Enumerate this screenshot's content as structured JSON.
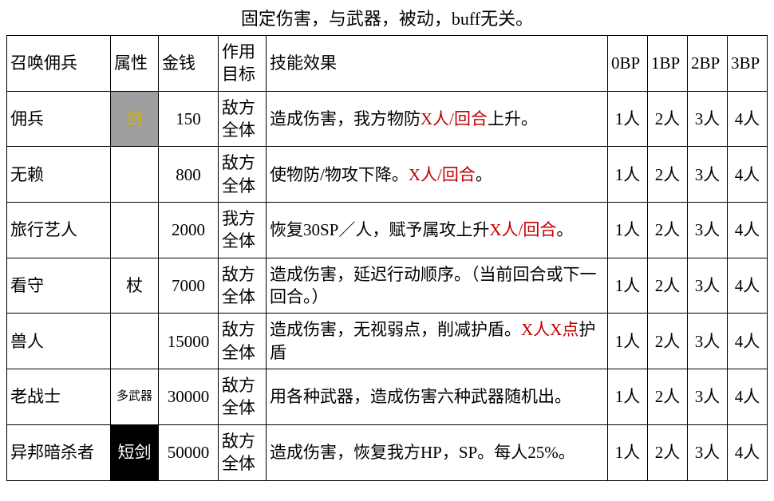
{
  "caption": "固定伤害，与武器，被动，buff无关。",
  "columns": [
    "召唤佣兵",
    "属性",
    "金钱",
    "作用目标",
    "技能效果",
    "0BP",
    "1BP",
    "2BP",
    "3BP"
  ],
  "rows": [
    {
      "name": "佣兵",
      "attr": "剑",
      "attr_style": "gray",
      "gold": "150",
      "target": "敌方全体",
      "effect_parts": [
        {
          "t": "造成伤害，我方物防"
        },
        {
          "t": "X人/回合",
          "hl": true
        },
        {
          "t": "上升。"
        }
      ],
      "bp": [
        "1人",
        "2人",
        "3人",
        "4人"
      ]
    },
    {
      "name": "无赖",
      "attr": "",
      "attr_style": "",
      "gold": "800",
      "target": "敌方全体",
      "effect_parts": [
        {
          "t": "使物防/物攻下降。"
        },
        {
          "t": "X人/回合",
          "hl": true
        },
        {
          "t": "。"
        }
      ],
      "bp": [
        "1人",
        "2人",
        "3人",
        "4人"
      ]
    },
    {
      "name": "旅行艺人",
      "attr": "",
      "attr_style": "",
      "gold": "2000",
      "target": "我方全体",
      "effect_parts": [
        {
          "t": "恢复30SP／人，赋予属攻上升"
        },
        {
          "t": "X人/回合",
          "hl": true
        },
        {
          "t": "。"
        }
      ],
      "bp": [
        "1人",
        "2人",
        "3人",
        "4人"
      ]
    },
    {
      "name": "看守",
      "attr": "杖",
      "attr_style": "",
      "gold": "7000",
      "target": "敌方全体",
      "effect_parts": [
        {
          "t": "造成伤害，延迟行动顺序。（当前回合或下一回合。）"
        }
      ],
      "bp": [
        "1人",
        "2人",
        "3人",
        "4人"
      ]
    },
    {
      "name": "兽人",
      "attr": "",
      "attr_style": "",
      "gold": "15000",
      "target": "敌方全体",
      "effect_parts": [
        {
          "t": "造成伤害，无视弱点，削减护盾。"
        },
        {
          "t": "X人X点",
          "hl": true
        },
        {
          "t": "护盾"
        }
      ],
      "bp": [
        "1人",
        "2人",
        "3人",
        "4人"
      ]
    },
    {
      "name": "老战士",
      "attr": "多武器",
      "attr_style": "small",
      "gold": "30000",
      "target": "敌方全体",
      "effect_parts": [
        {
          "t": "用各种武器，造成伤害六种武器随机出。"
        }
      ],
      "bp": [
        "1人",
        "2人",
        "3人",
        "4人"
      ]
    },
    {
      "name": "异邦暗杀者",
      "attr": "短剑",
      "attr_style": "black",
      "gold": "50000",
      "target": "敌方全体",
      "effect_parts": [
        {
          "t": "造成伤害，恢复我方HP，SP。每人25%。"
        }
      ],
      "bp": [
        "1人",
        "2人",
        "3人",
        "4人"
      ]
    }
  ]
}
